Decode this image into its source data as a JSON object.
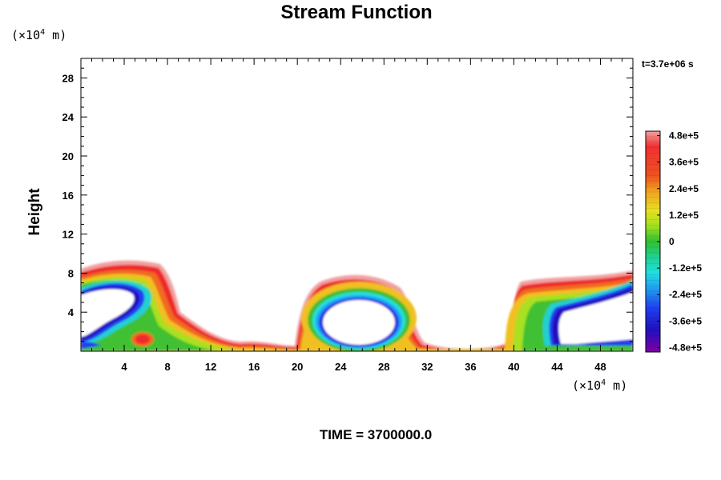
{
  "chart_data": {
    "type": "heatmap",
    "title": "Stream Function",
    "ylabel": "Height",
    "xlabel": "",
    "x_units": {
      "prefix": "(×10",
      "exp": "4",
      "suffix": " m)"
    },
    "y_units": {
      "prefix": "(×10",
      "exp": "4",
      "suffix": " m)"
    },
    "xlim": [
      0,
      51
    ],
    "ylim": [
      0,
      30
    ],
    "x_ticks": [
      4,
      8,
      12,
      16,
      20,
      24,
      28,
      32,
      36,
      40,
      44,
      48
    ],
    "y_ticks": [
      4,
      8,
      12,
      16,
      20,
      24,
      28
    ],
    "x_tick_labels": [
      "4",
      "8",
      "12",
      "16",
      "20",
      "24",
      "28",
      "32",
      "36",
      "40",
      "44",
      "48"
    ],
    "y_tick_labels": [
      "4",
      "8",
      "12",
      "16",
      "20",
      "24",
      "28"
    ],
    "colorbar": {
      "range": [
        -500000,
        500000
      ],
      "ticks": [
        480000,
        360000,
        240000,
        120000,
        0,
        -120000,
        -240000,
        -360000,
        -480000
      ],
      "tick_labels": [
        "4.8e+5",
        "3.6e+5",
        "2.4e+5",
        "1.2e+5",
        "0",
        "-1.2e+5",
        "-2.4e+5",
        "-3.6e+5",
        "-4.8e+5"
      ],
      "colors_top_to_bottom": [
        "#f08a8a",
        "#ee2a2a",
        "#f06020",
        "#f5a020",
        "#f0e020",
        "#a0e020",
        "#30c020",
        "#20d080",
        "#20e0e0",
        "#20a0f0",
        "#2040f0",
        "#2010c0",
        "#8000a0"
      ]
    },
    "timestamp": "t=3.7e+06 s",
    "footer": "TIME = 3700000.0",
    "upper_boundary_height_approx": [
      [
        0,
        8.1
      ],
      [
        4,
        8.9
      ],
      [
        7,
        8.3
      ],
      [
        8.5,
        4.5
      ],
      [
        10,
        3.5
      ],
      [
        12,
        2.0
      ],
      [
        14,
        1.0
      ],
      [
        16,
        1.0
      ],
      [
        18,
        0.3
      ],
      [
        20,
        0.3
      ],
      [
        20.5,
        4.5
      ],
      [
        22,
        6.5
      ],
      [
        25,
        7.7
      ],
      [
        28,
        7.2
      ],
      [
        30,
        5.0
      ],
      [
        31,
        1.5
      ],
      [
        33,
        0.4
      ],
      [
        39,
        0.4
      ],
      [
        40,
        1.5
      ],
      [
        41,
        7.5
      ],
      [
        44,
        7.6
      ],
      [
        48,
        7.7
      ],
      [
        51,
        8.1
      ]
    ],
    "cells": [
      {
        "name": "left",
        "x_center": 3.5,
        "y_center": 4.0,
        "sign": "mixed",
        "note": "negative core near lower-left, positive blob near x=6"
      },
      {
        "name": "middle",
        "x_center": 25.5,
        "y_center": 3.5,
        "sign": "negative",
        "min_approx": -480000
      },
      {
        "name": "right",
        "x_center": 46,
        "y_center": 4.0,
        "sign": "negative",
        "min_approx": -480000
      }
    ]
  }
}
